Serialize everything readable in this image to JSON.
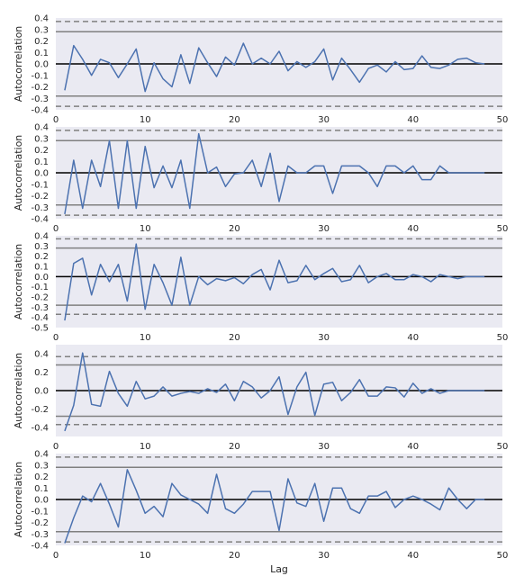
{
  "chart_data": [
    {
      "type": "line",
      "ylabel": "Autocorrelation",
      "xlabel": "",
      "xlim": [
        0,
        50
      ],
      "ylim": [
        -0.4,
        0.4
      ],
      "xticks": [
        "0",
        "10",
        "20",
        "30",
        "40",
        "50"
      ],
      "yticks": [
        "0.4",
        "0.3",
        "0.2",
        "0.1",
        "0.0",
        "-0.1",
        "-0.2",
        "-0.3",
        "-0.4"
      ],
      "ytick_values": [
        0.4,
        0.3,
        0.2,
        0.1,
        0.0,
        -0.1,
        -0.2,
        -0.3,
        -0.4
      ],
      "conf_solid": [
        0.28,
        -0.28
      ],
      "conf_dashed": [
        0.37,
        -0.37
      ],
      "series": [
        {
          "x": [
            1,
            2,
            3,
            4,
            5,
            6,
            7,
            8,
            9,
            10,
            11,
            12,
            13,
            14,
            15,
            16,
            17,
            18,
            19,
            20,
            21,
            22,
            23,
            24,
            25,
            26,
            27,
            28,
            29,
            30,
            31,
            32,
            33,
            34,
            35,
            36,
            37,
            38,
            39,
            40,
            41,
            42,
            43,
            44,
            45,
            46,
            47,
            48
          ],
          "values": [
            -0.23,
            0.16,
            0.04,
            -0.1,
            0.04,
            0.01,
            -0.12,
            0.0,
            0.13,
            -0.24,
            0.01,
            -0.13,
            -0.2,
            0.08,
            -0.17,
            0.14,
            0.01,
            -0.11,
            0.06,
            -0.01,
            0.18,
            0.0,
            0.05,
            0.0,
            0.11,
            -0.06,
            0.02,
            -0.03,
            0.02,
            0.13,
            -0.14,
            0.05,
            -0.05,
            -0.16,
            -0.04,
            -0.01,
            -0.07,
            0.02,
            -0.05,
            -0.04,
            0.07,
            -0.03,
            -0.04,
            -0.01,
            0.04,
            0.05,
            0.01,
            0.0
          ]
        }
      ]
    },
    {
      "type": "line",
      "ylabel": "Autocorrelation",
      "xlabel": "",
      "xlim": [
        0,
        50
      ],
      "ylim": [
        -0.4,
        0.4
      ],
      "xticks": [
        "0",
        "10",
        "20",
        "30",
        "40",
        "50"
      ],
      "yticks": [
        "0.4",
        "0.3",
        "0.2",
        "0.1",
        "0.0",
        "-0.1",
        "-0.2",
        "-0.3",
        "-0.4"
      ],
      "ytick_values": [
        0.4,
        0.3,
        0.2,
        0.1,
        0.0,
        -0.1,
        -0.2,
        -0.3,
        -0.4
      ],
      "conf_solid": [
        0.28,
        -0.28
      ],
      "conf_dashed": [
        0.37,
        -0.37
      ],
      "series": [
        {
          "x": [
            1,
            2,
            3,
            4,
            5,
            6,
            7,
            8,
            9,
            10,
            11,
            12,
            13,
            14,
            15,
            16,
            17,
            18,
            19,
            20,
            21,
            22,
            23,
            24,
            25,
            26,
            27,
            28,
            29,
            30,
            31,
            32,
            33,
            34,
            35,
            36,
            37,
            38,
            39,
            40,
            41,
            42,
            43,
            44,
            45,
            46,
            47,
            48
          ],
          "values": [
            -0.36,
            0.11,
            -0.31,
            0.11,
            -0.12,
            0.28,
            -0.31,
            0.28,
            -0.31,
            0.23,
            -0.13,
            0.06,
            -0.13,
            0.11,
            -0.31,
            0.34,
            0.0,
            0.05,
            -0.12,
            -0.01,
            0.0,
            0.11,
            -0.12,
            0.17,
            -0.25,
            0.06,
            0.0,
            0.0,
            0.06,
            0.06,
            -0.18,
            0.06,
            0.06,
            0.06,
            0.0,
            -0.12,
            0.06,
            0.06,
            0.0,
            0.06,
            -0.06,
            -0.06,
            0.06,
            0.0,
            0.0,
            0.0,
            0.0,
            0.0
          ]
        }
      ]
    },
    {
      "type": "line",
      "ylabel": "Autocorrelation",
      "xlabel": "",
      "xlim": [
        0,
        50
      ],
      "ylim": [
        -0.5,
        0.4
      ],
      "xticks": [
        "0",
        "10",
        "20",
        "30",
        "40",
        "50"
      ],
      "yticks": [
        "0.4",
        "0.3",
        "0.2",
        "0.1",
        "0.0",
        "-0.1",
        "-0.2",
        "-0.3",
        "-0.4",
        "-0.5"
      ],
      "ytick_values": [
        0.4,
        0.3,
        0.2,
        0.1,
        0.0,
        -0.1,
        -0.2,
        -0.3,
        -0.4,
        -0.5
      ],
      "conf_solid": [
        0.28,
        -0.28
      ],
      "conf_dashed": [
        0.37,
        -0.37
      ],
      "series": [
        {
          "x": [
            1,
            2,
            3,
            4,
            5,
            6,
            7,
            8,
            9,
            10,
            11,
            12,
            13,
            14,
            15,
            16,
            17,
            18,
            19,
            20,
            21,
            22,
            23,
            24,
            25,
            26,
            27,
            28,
            29,
            30,
            31,
            32,
            33,
            34,
            35,
            36,
            37,
            38,
            39,
            40,
            41,
            42,
            43,
            44,
            45,
            46,
            47,
            48
          ],
          "values": [
            -0.43,
            0.13,
            0.18,
            -0.18,
            0.12,
            -0.05,
            0.12,
            -0.24,
            0.32,
            -0.32,
            0.12,
            -0.06,
            -0.28,
            0.19,
            -0.28,
            0.0,
            -0.08,
            -0.02,
            -0.04,
            -0.01,
            -0.07,
            0.02,
            0.07,
            -0.13,
            0.16,
            -0.06,
            -0.04,
            0.11,
            -0.03,
            0.03,
            0.08,
            -0.05,
            -0.03,
            0.11,
            -0.06,
            0.0,
            0.03,
            -0.03,
            -0.03,
            0.02,
            0.0,
            -0.05,
            0.02,
            0.0,
            -0.02,
            0.0,
            0.0,
            0.0
          ]
        }
      ]
    },
    {
      "type": "line",
      "ylabel": "Autocorrelation",
      "xlabel": "",
      "xlim": [
        0,
        50
      ],
      "ylim": [
        -0.5,
        0.5
      ],
      "xticks": [
        "0",
        "10",
        "20",
        "30",
        "40",
        "50"
      ],
      "yticks": [
        "0.4",
        "0.2",
        "0.0",
        "-0.2",
        "-0.4"
      ],
      "ytick_values": [
        0.4,
        0.2,
        0.0,
        -0.2,
        -0.4
      ],
      "conf_solid": [
        0.28,
        -0.28
      ],
      "conf_dashed": [
        0.37,
        -0.37
      ],
      "series": [
        {
          "x": [
            1,
            2,
            3,
            4,
            5,
            6,
            7,
            8,
            9,
            10,
            11,
            12,
            13,
            14,
            15,
            16,
            17,
            18,
            19,
            20,
            21,
            22,
            23,
            24,
            25,
            26,
            27,
            28,
            29,
            30,
            31,
            32,
            33,
            34,
            35,
            36,
            37,
            38,
            39,
            40,
            41,
            42,
            43,
            44,
            45,
            46,
            47,
            48
          ],
          "values": [
            -0.44,
            -0.16,
            0.41,
            -0.15,
            -0.17,
            0.21,
            -0.03,
            -0.17,
            0.1,
            -0.09,
            -0.06,
            0.04,
            -0.06,
            -0.03,
            -0.01,
            -0.03,
            0.02,
            -0.02,
            0.07,
            -0.11,
            0.1,
            0.04,
            -0.08,
            0.0,
            0.15,
            -0.26,
            0.04,
            0.2,
            -0.27,
            0.07,
            0.09,
            -0.11,
            -0.02,
            0.12,
            -0.06,
            -0.06,
            0.04,
            0.03,
            -0.07,
            0.08,
            -0.03,
            0.02,
            -0.03,
            0.0,
            0.0,
            0.0,
            0.0,
            0.0
          ]
        }
      ]
    },
    {
      "type": "line",
      "ylabel": "Autocorrelation",
      "xlabel": "Lag",
      "xlim": [
        0,
        50
      ],
      "ylim": [
        -0.4,
        0.4
      ],
      "xticks": [
        "0",
        "10",
        "20",
        "30",
        "40",
        "50"
      ],
      "yticks": [
        "0.4",
        "0.3",
        "0.2",
        "0.1",
        "0.0",
        "-0.1",
        "-0.2",
        "-0.3",
        "-0.4"
      ],
      "ytick_values": [
        0.4,
        0.3,
        0.2,
        0.1,
        0.0,
        -0.1,
        -0.2,
        -0.3,
        -0.4
      ],
      "conf_solid": [
        0.28,
        -0.28
      ],
      "conf_dashed": [
        0.37,
        -0.37
      ],
      "series": [
        {
          "x": [
            1,
            2,
            3,
            4,
            5,
            6,
            7,
            8,
            9,
            10,
            11,
            12,
            13,
            14,
            15,
            16,
            17,
            18,
            19,
            20,
            21,
            22,
            23,
            24,
            25,
            26,
            27,
            28,
            29,
            30,
            31,
            32,
            33,
            34,
            35,
            36,
            37,
            38,
            39,
            40,
            41,
            42,
            43,
            44,
            45,
            46,
            47,
            48
          ],
          "values": [
            -0.38,
            -0.16,
            0.03,
            -0.02,
            0.14,
            -0.04,
            -0.24,
            0.26,
            0.08,
            -0.12,
            -0.06,
            -0.15,
            0.14,
            0.04,
            0.0,
            -0.04,
            -0.12,
            0.22,
            -0.08,
            -0.12,
            -0.04,
            0.07,
            0.07,
            0.07,
            -0.27,
            0.18,
            -0.03,
            -0.06,
            0.14,
            -0.19,
            0.1,
            0.1,
            -0.08,
            -0.12,
            0.03,
            0.03,
            0.07,
            -0.07,
            0.0,
            0.03,
            0.0,
            -0.04,
            -0.09,
            0.1,
            0.0,
            -0.08,
            0.0,
            0.0
          ]
        }
      ]
    }
  ],
  "colors": {
    "axes_bg": "#EAEAF2",
    "line": "#4C72B0",
    "conf_lines": "#808080",
    "zero_line": "#000000"
  }
}
